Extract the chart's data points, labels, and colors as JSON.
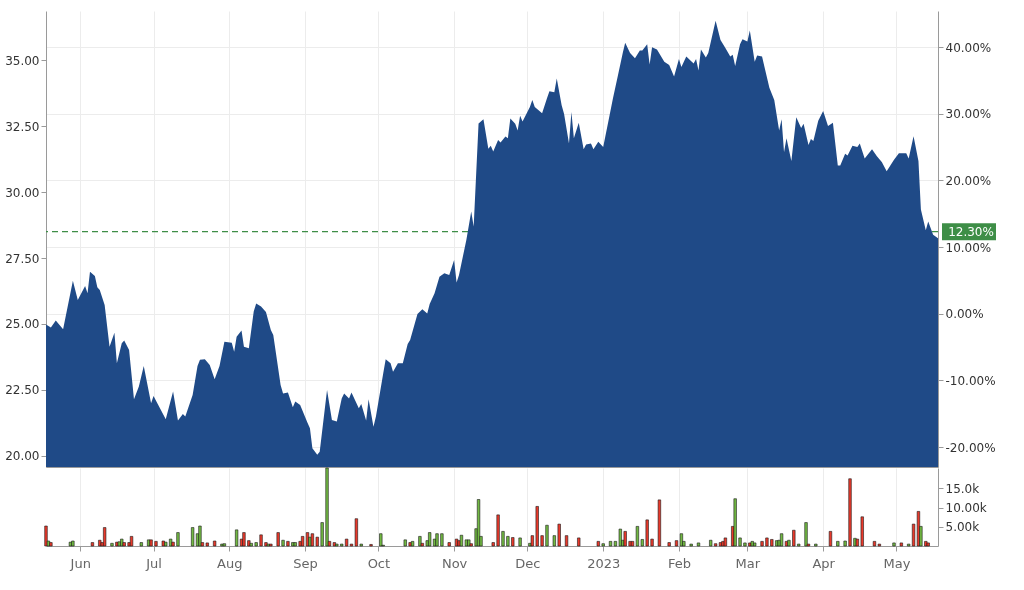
{
  "chart_data": [
    {
      "type": "area",
      "xlim": [
        "2022-05-18",
        "2023-05-18"
      ],
      "xticks": [
        {
          "value": "2022-06-01",
          "label": null
        },
        {
          "value": "2022-07-01",
          "label": null
        },
        {
          "value": "2022-08-01",
          "label": null
        },
        {
          "value": "2022-09-01",
          "label": null
        },
        {
          "value": "2022-10-01",
          "label": null
        },
        {
          "value": "2022-11-01",
          "label": null
        },
        {
          "value": "2022-12-01",
          "label": null
        },
        {
          "value": "2023-01-01",
          "label": null
        },
        {
          "value": "2023-02-01",
          "label": null
        },
        {
          "value": "2023-03-01",
          "label": null
        },
        {
          "value": "2023-04-01",
          "label": null
        },
        {
          "value": "2023-05-01",
          "label": null
        }
      ],
      "ylim": [
        19.58,
        36.86
      ],
      "yticks": [
        {
          "value": 20,
          "label": "20.00"
        },
        {
          "value": 22.5,
          "label": "22.50"
        },
        {
          "value": 25,
          "label": "25.00"
        },
        {
          "value": 27.5,
          "label": "27.50"
        },
        {
          "value": 30,
          "label": "30.00"
        },
        {
          "value": 32.5,
          "label": "32.50"
        },
        {
          "value": 35,
          "label": "35.00"
        }
      ],
      "y2lim": [
        -23.0,
        45.4
      ],
      "y2ticks": [
        {
          "value": -20,
          "label": "-20.00%"
        },
        {
          "value": -10,
          "label": "-10.00%"
        },
        {
          "value": 0,
          "label": "0.00%"
        },
        {
          "value": 10,
          "label": "10.00%"
        },
        {
          "value": 20,
          "label": "20.00%"
        },
        {
          "value": 30,
          "label": "30.00%"
        },
        {
          "value": 40,
          "label": "40.00%"
        }
      ],
      "grid": true,
      "tick_labels": "y",
      "ref_lines": [
        {
          "axis": "y2",
          "value": 12.3,
          "label": "12.30%",
          "color": "#3e8e47",
          "line_style": "dashed"
        }
      ],
      "series": [
        {
          "color": "#1f4a87",
          "x": [
            "2022-05-18",
            "2022-05-20",
            "2022-05-22",
            "2022-05-25",
            "2022-05-29",
            "2022-05-31",
            "2022-06-03",
            "2022-06-04",
            "2022-06-05",
            "2022-06-07",
            "2022-06-08",
            "2022-06-09",
            "2022-06-11",
            "2022-06-13",
            "2022-06-15",
            "2022-06-16",
            "2022-06-18",
            "2022-06-19",
            "2022-06-21",
            "2022-06-23",
            "2022-06-25",
            "2022-06-27",
            "2022-06-30",
            "2022-07-01",
            "2022-07-06",
            "2022-07-09",
            "2022-07-11",
            "2022-07-13",
            "2022-07-14",
            "2022-07-17",
            "2022-07-19",
            "2022-07-20",
            "2022-07-22",
            "2022-07-24",
            "2022-07-26",
            "2022-07-28",
            "2022-07-30",
            "2022-08-02",
            "2022-08-03",
            "2022-08-04",
            "2022-08-06",
            "2022-08-07",
            "2022-08-09",
            "2022-08-11",
            "2022-08-12",
            "2022-08-14",
            "2022-08-16",
            "2022-08-18",
            "2022-08-19",
            "2022-08-22",
            "2022-08-23",
            "2022-08-25",
            "2022-08-27",
            "2022-08-28",
            "2022-08-30",
            "2022-09-02",
            "2022-09-03",
            "2022-09-04",
            "2022-09-06",
            "2022-09-07",
            "2022-09-10",
            "2022-09-12",
            "2022-09-14",
            "2022-09-16",
            "2022-09-17",
            "2022-09-19",
            "2022-09-20",
            "2022-09-23",
            "2022-09-24",
            "2022-09-26",
            "2022-09-27",
            "2022-09-29",
            "2022-09-30",
            "2022-10-03",
            "2022-10-04",
            "2022-10-06",
            "2022-10-07",
            "2022-10-09",
            "2022-10-11",
            "2022-10-13",
            "2022-10-14",
            "2022-10-17",
            "2022-10-19",
            "2022-10-21",
            "2022-10-22",
            "2022-10-24",
            "2022-10-26",
            "2022-10-28",
            "2022-10-30",
            "2022-11-01",
            "2022-11-02",
            "2022-11-03",
            "2022-11-06",
            "2022-11-08",
            "2022-11-09",
            "2022-11-11",
            "2022-11-13",
            "2022-11-15",
            "2022-11-16",
            "2022-11-17",
            "2022-11-19",
            "2022-11-20",
            "2022-11-22",
            "2022-11-23",
            "2022-11-24",
            "2022-11-26",
            "2022-11-27",
            "2022-11-28",
            "2022-11-29",
            "2022-12-02",
            "2022-12-03",
            "2022-12-04",
            "2022-12-07",
            "2022-12-09",
            "2022-12-10",
            "2022-12-12",
            "2022-12-13",
            "2022-12-15",
            "2022-12-16",
            "2022-12-18",
            "2022-12-19",
            "2022-12-20",
            "2022-12-22",
            "2022-12-24",
            "2022-12-25",
            "2022-12-27",
            "2022-12-28",
            "2022-12-30",
            "2023-01-01",
            "2023-01-03",
            "2023-01-05",
            "2023-01-07",
            "2023-01-09",
            "2023-01-10",
            "2023-01-12",
            "2023-01-14",
            "2023-01-16",
            "2023-01-17",
            "2023-01-19",
            "2023-01-20",
            "2023-01-21",
            "2023-01-23",
            "2023-01-26",
            "2023-01-28",
            "2023-01-30",
            "2023-02-01",
            "2023-02-02",
            "2023-02-04",
            "2023-02-07",
            "2023-02-08",
            "2023-02-09",
            "2023-02-10",
            "2023-02-12",
            "2023-02-13",
            "2023-02-16",
            "2023-02-18",
            "2023-02-20",
            "2023-02-22",
            "2023-02-23",
            "2023-02-24",
            "2023-02-26",
            "2023-02-27",
            "2023-03-01",
            "2023-03-02",
            "2023-03-04",
            "2023-03-05",
            "2023-03-07",
            "2023-03-08",
            "2023-03-10",
            "2023-03-12",
            "2023-03-14",
            "2023-03-15",
            "2023-03-16",
            "2023-03-17",
            "2023-03-19",
            "2023-03-21",
            "2023-03-23",
            "2023-03-24",
            "2023-03-26",
            "2023-03-27",
            "2023-03-28",
            "2023-03-30",
            "2023-04-01",
            "2023-04-03",
            "2023-04-05",
            "2023-04-07",
            "2023-04-08",
            "2023-04-10",
            "2023-04-11",
            "2023-04-13",
            "2023-04-15",
            "2023-04-16",
            "2023-04-18",
            "2023-04-21",
            "2023-04-23",
            "2023-04-25",
            "2023-04-27",
            "2023-04-30",
            "2023-05-02",
            "2023-05-05",
            "2023-05-06",
            "2023-05-08",
            "2023-05-10",
            "2023-05-11",
            "2023-05-13",
            "2023-05-14",
            "2023-05-16",
            "2023-05-18"
          ],
          "values": [
            24.98,
            24.87,
            25.13,
            24.8,
            26.64,
            25.91,
            26.44,
            26.16,
            26.98,
            26.82,
            26.39,
            26.29,
            25.72,
            24.14,
            24.67,
            23.51,
            24.27,
            24.37,
            24.01,
            22.15,
            22.63,
            23.41,
            22.0,
            22.27,
            21.39,
            22.44,
            21.34,
            21.59,
            21.49,
            22.31,
            23.41,
            23.64,
            23.66,
            23.45,
            22.91,
            23.41,
            24.33,
            24.29,
            23.95,
            24.52,
            24.75,
            24.14,
            24.08,
            25.47,
            25.78,
            25.66,
            25.45,
            24.77,
            24.58,
            22.69,
            22.37,
            22.4,
            21.84,
            22.06,
            21.93,
            21.26,
            21.05,
            20.29,
            20.04,
            20.16,
            22.5,
            21.36,
            21.3,
            22.18,
            22.37,
            22.18,
            22.4,
            21.81,
            21.97,
            21.34,
            22.15,
            21.11,
            21.49,
            23.13,
            23.66,
            23.51,
            23.19,
            23.51,
            23.51,
            24.24,
            24.39,
            25.38,
            25.56,
            25.4,
            25.76,
            26.16,
            26.79,
            26.92,
            26.86,
            27.42,
            26.57,
            26.86,
            28.18,
            29.26,
            28.69,
            32.6,
            32.76,
            31.64,
            31.75,
            31.54,
            31.97,
            31.88,
            32.1,
            32.04,
            32.79,
            32.59,
            32.33,
            32.89,
            32.67,
            33.22,
            33.49,
            33.22,
            32.99,
            33.55,
            33.82,
            33.78,
            34.3,
            33.29,
            32.96,
            31.84,
            33.03,
            32.04,
            32.63,
            31.62,
            31.8,
            31.84,
            31.62,
            31.91,
            31.71,
            32.63,
            33.55,
            34.41,
            35.27,
            35.66,
            35.27,
            35.07,
            35.36,
            35.36,
            35.6,
            34.83,
            35.49,
            35.4,
            34.94,
            34.81,
            34.38,
            35.04,
            34.74,
            35.14,
            34.87,
            35.04,
            34.61,
            35.4,
            35.1,
            35.27,
            36.49,
            35.76,
            35.46,
            35.14,
            35.2,
            34.78,
            35.6,
            35.79,
            35.7,
            36.12,
            34.94,
            35.17,
            35.14,
            34.74,
            33.95,
            33.49,
            32.33,
            32.76,
            31.51,
            32.04,
            31.18,
            32.83,
            32.43,
            32.59,
            31.78,
            32.01,
            31.93,
            32.7,
            33.07,
            32.5,
            32.63,
            31.01,
            31.01,
            31.45,
            31.38,
            31.75,
            31.71,
            31.84,
            31.27,
            31.62,
            31.36,
            31.14,
            30.79,
            31.22,
            31.47,
            31.47,
            31.27,
            32.11,
            31.18,
            29.34,
            28.55,
            28.88,
            28.38,
            28.25
          ]
        }
      ]
    },
    {
      "type": "bar",
      "xlim": [
        "2022-05-18",
        "2023-05-18"
      ],
      "xticks": [
        {
          "value": "2022-06-01",
          "label": "Jun"
        },
        {
          "value": "2022-07-01",
          "label": "Jul"
        },
        {
          "value": "2022-08-01",
          "label": "Aug"
        },
        {
          "value": "2022-09-01",
          "label": "Sep"
        },
        {
          "value": "2022-10-01",
          "label": "Oct"
        },
        {
          "value": "2022-11-01",
          "label": "Nov"
        },
        {
          "value": "2022-12-01",
          "label": "Dec"
        },
        {
          "value": "2023-01-01",
          "label": "2023"
        },
        {
          "value": "2023-02-01",
          "label": "Feb"
        },
        {
          "value": "2023-03-01",
          "label": "Mar"
        },
        {
          "value": "2023-04-01",
          "label": "Apr"
        },
        {
          "value": "2023-05-01",
          "label": "May"
        }
      ],
      "ylim": [
        0,
        20300
      ],
      "yticks": [
        {
          "value": 5000,
          "label": "5.00k"
        },
        {
          "value": 10000,
          "label": "10.00k"
        },
        {
          "value": 15000,
          "label": "15.0k"
        }
      ],
      "grid": "x",
      "series": [
        {
          "x": [
            "2022-05-18",
            "2022-05-19",
            "2022-05-20",
            "2022-05-28",
            "2022-05-29",
            "2022-06-06",
            "2022-06-09",
            "2022-06-10",
            "2022-06-11",
            "2022-06-14",
            "2022-06-16",
            "2022-06-17",
            "2022-06-18",
            "2022-06-19",
            "2022-06-21",
            "2022-06-22",
            "2022-06-26",
            "2022-06-29",
            "2022-06-30",
            "2022-07-02",
            "2022-07-05",
            "2022-07-06",
            "2022-07-08",
            "2022-07-09",
            "2022-07-11",
            "2022-07-17",
            "2022-07-19",
            "2022-07-20",
            "2022-07-21",
            "2022-07-23",
            "2022-07-26",
            "2022-07-29",
            "2022-07-30",
            "2022-08-04",
            "2022-08-06",
            "2022-08-07",
            "2022-08-09",
            "2022-08-10",
            "2022-08-12",
            "2022-08-14",
            "2022-08-16",
            "2022-08-17",
            "2022-08-18",
            "2022-08-21",
            "2022-08-23",
            "2022-08-25",
            "2022-08-27",
            "2022-08-28",
            "2022-08-30",
            "2022-08-31",
            "2022-09-02",
            "2022-09-03",
            "2022-09-04",
            "2022-09-06",
            "2022-09-08",
            "2022-09-10",
            "2022-09-11",
            "2022-09-13",
            "2022-09-14",
            "2022-09-16",
            "2022-09-18",
            "2022-09-20",
            "2022-09-22",
            "2022-09-24",
            "2022-09-28",
            "2022-10-02",
            "2022-10-03",
            "2022-10-12",
            "2022-10-14",
            "2022-10-15",
            "2022-10-18",
            "2022-10-19",
            "2022-10-21",
            "2022-10-22",
            "2022-10-24",
            "2022-10-25",
            "2022-10-27",
            "2022-10-30",
            "2022-11-02",
            "2022-11-03",
            "2022-11-04",
            "2022-11-06",
            "2022-11-07",
            "2022-11-08",
            "2022-11-10",
            "2022-11-11",
            "2022-11-12",
            "2022-11-17",
            "2022-11-19",
            "2022-11-21",
            "2022-11-23",
            "2022-11-25",
            "2022-11-28",
            "2022-12-02",
            "2022-12-03",
            "2022-12-05",
            "2022-12-07",
            "2022-12-09",
            "2022-12-12",
            "2022-12-14",
            "2022-12-17",
            "2022-12-22",
            "2022-12-30",
            "2023-01-01",
            "2023-01-04",
            "2023-01-06",
            "2023-01-08",
            "2023-01-09",
            "2023-01-10",
            "2023-01-12",
            "2023-01-13",
            "2023-01-15",
            "2023-01-17",
            "2023-01-19",
            "2023-01-21",
            "2023-01-24",
            "2023-01-28",
            "2023-01-31",
            "2023-02-02",
            "2023-02-03",
            "2023-02-06",
            "2023-02-09",
            "2023-02-14",
            "2023-02-16",
            "2023-02-18",
            "2023-02-19",
            "2023-02-20",
            "2023-02-23",
            "2023-02-24",
            "2023-02-26",
            "2023-02-28",
            "2023-03-02",
            "2023-03-03",
            "2023-03-04",
            "2023-03-07",
            "2023-03-09",
            "2023-03-11",
            "2023-03-13",
            "2023-03-14",
            "2023-03-15",
            "2023-03-17",
            "2023-03-18",
            "2023-03-20",
            "2023-03-22",
            "2023-03-25",
            "2023-03-26",
            "2023-03-29",
            "2023-04-04",
            "2023-04-07",
            "2023-04-10",
            "2023-04-12",
            "2023-04-14",
            "2023-04-15",
            "2023-04-17",
            "2023-04-22",
            "2023-04-24",
            "2023-04-30",
            "2023-05-03",
            "2023-05-06",
            "2023-05-08",
            "2023-05-10",
            "2023-05-11",
            "2023-05-13",
            "2023-05-14"
          ],
          "values": [
            5200,
            1300,
            900,
            1000,
            1300,
            900,
            1500,
            900,
            4800,
            700,
            1000,
            1100,
            1800,
            900,
            900,
            2500,
            900,
            1600,
            1600,
            1200,
            1300,
            1000,
            1800,
            1000,
            3500,
            4800,
            3200,
            5200,
            900,
            800,
            1300,
            500,
            600,
            4200,
            1800,
            3500,
            1400,
            700,
            900,
            2900,
            900,
            500,
            500,
            3500,
            1500,
            1200,
            900,
            900,
            1200,
            2500,
            3500,
            2300,
            3200,
            2300,
            6100,
            20300,
            1200,
            900,
            500,
            500,
            1800,
            500,
            7100,
            500,
            400,
            3200,
            200,
            1600,
            900,
            1200,
            2500,
            700,
            1400,
            3500,
            1800,
            3200,
            3200,
            900,
            1800,
            1400,
            2800,
            1600,
            1600,
            600,
            4500,
            12100,
            2500,
            900,
            8100,
            3800,
            2500,
            2200,
            2100,
            700,
            2700,
            10300,
            2700,
            5400,
            2700,
            5700,
            2700,
            2100,
            1200,
            600,
            1200,
            1200,
            4400,
            1500,
            3800,
            1200,
            1200,
            5100,
            1700,
            6800,
            1800,
            12000,
            900,
            1400,
            3200,
            1200,
            500,
            800,
            1500,
            600,
            900,
            1200,
            2100,
            5100,
            12300,
            2100,
            800,
            800,
            1200,
            800,
            1200,
            2100,
            1700,
            1400,
            1500,
            3200,
            1200,
            1500,
            4100,
            500,
            6100,
            500,
            500,
            3800,
            1200,
            1300,
            17500,
            2000,
            1800,
            7600,
            1200,
            500,
            800,
            800,
            500,
            5700,
            9000,
            5100,
            1200,
            800
          ],
          "colors": [
            "#e8392b",
            "#72b943",
            "#e8392b",
            "#72b943",
            "#72b943",
            "#e8392b",
            "#e8392b",
            "#e8392b",
            "#e8392b",
            "#72b943",
            "#e8392b",
            "#72b943",
            "#72b943",
            "#e8392b",
            "#e8392b",
            "#e8392b",
            "#72b943",
            "#72b943",
            "#e8392b",
            "#e8392b",
            "#e8392b",
            "#72b943",
            "#72b943",
            "#e8392b",
            "#72b943",
            "#72b943",
            "#72b943",
            "#72b943",
            "#e8392b",
            "#e8392b",
            "#e8392b",
            "#72b943",
            "#72b943",
            "#72b943",
            "#e8392b",
            "#e8392b",
            "#e8392b",
            "#72b943",
            "#72b943",
            "#e8392b",
            "#e8392b",
            "#72b943",
            "#e8392b",
            "#e8392b",
            "#72b943",
            "#e8392b",
            "#72b943",
            "#72b943",
            "#e8392b",
            "#e8392b",
            "#e8392b",
            "#72b943",
            "#e8392b",
            "#e8392b",
            "#72b943",
            "#72b943",
            "#e8392b",
            "#e8392b",
            "#72b943",
            "#72b943",
            "#e8392b",
            "#e8392b",
            "#e8392b",
            "#72b943",
            "#e8392b",
            "#72b943",
            "#72b943",
            "#72b943",
            "#e8392b",
            "#72b943",
            "#72b943",
            "#e8392b",
            "#72b943",
            "#72b943",
            "#72b943",
            "#72b943",
            "#72b943",
            "#e8392b",
            "#e8392b",
            "#e8392b",
            "#72b943",
            "#72b943",
            "#72b943",
            "#e8392b",
            "#72b943",
            "#72b943",
            "#72b943",
            "#e8392b",
            "#e8392b",
            "#72b943",
            "#72b943",
            "#e8392b",
            "#72b943",
            "#72b943",
            "#e8392b",
            "#e8392b",
            "#e8392b",
            "#72b943",
            "#72b943",
            "#e8392b",
            "#e8392b",
            "#e8392b",
            "#e8392b",
            "#72b943",
            "#72b943",
            "#72b943",
            "#72b943",
            "#72b943",
            "#e8392b",
            "#e8392b",
            "#e8392b",
            "#72b943",
            "#72b943",
            "#e8392b",
            "#e8392b",
            "#e8392b",
            "#e8392b",
            "#e8392b",
            "#72b943",
            "#72b943",
            "#72b943",
            "#72b943",
            "#72b943",
            "#e8392b",
            "#e8392b",
            "#e8392b",
            "#e8392b",
            "#e8392b",
            "#72b943",
            "#72b943",
            "#72b943",
            "#e8392b",
            "#72b943",
            "#72b943",
            "#e8392b",
            "#e8392b",
            "#e8392b",
            "#72b943",
            "#72b943",
            "#72b943",
            "#e8392b",
            "#72b943",
            "#e8392b",
            "#72b943",
            "#72b943",
            "#e8392b",
            "#72b943",
            "#e8392b",
            "#72b943",
            "#72b943",
            "#e8392b",
            "#72b943",
            "#e8392b",
            "#e8392b",
            "#e8392b",
            "#e8392b",
            "#72b943",
            "#e8392b",
            "#72b943",
            "#e8392b",
            "#e8392b",
            "#72b943",
            "#e8392b",
            "#e8392b"
          ]
        }
      ]
    }
  ]
}
